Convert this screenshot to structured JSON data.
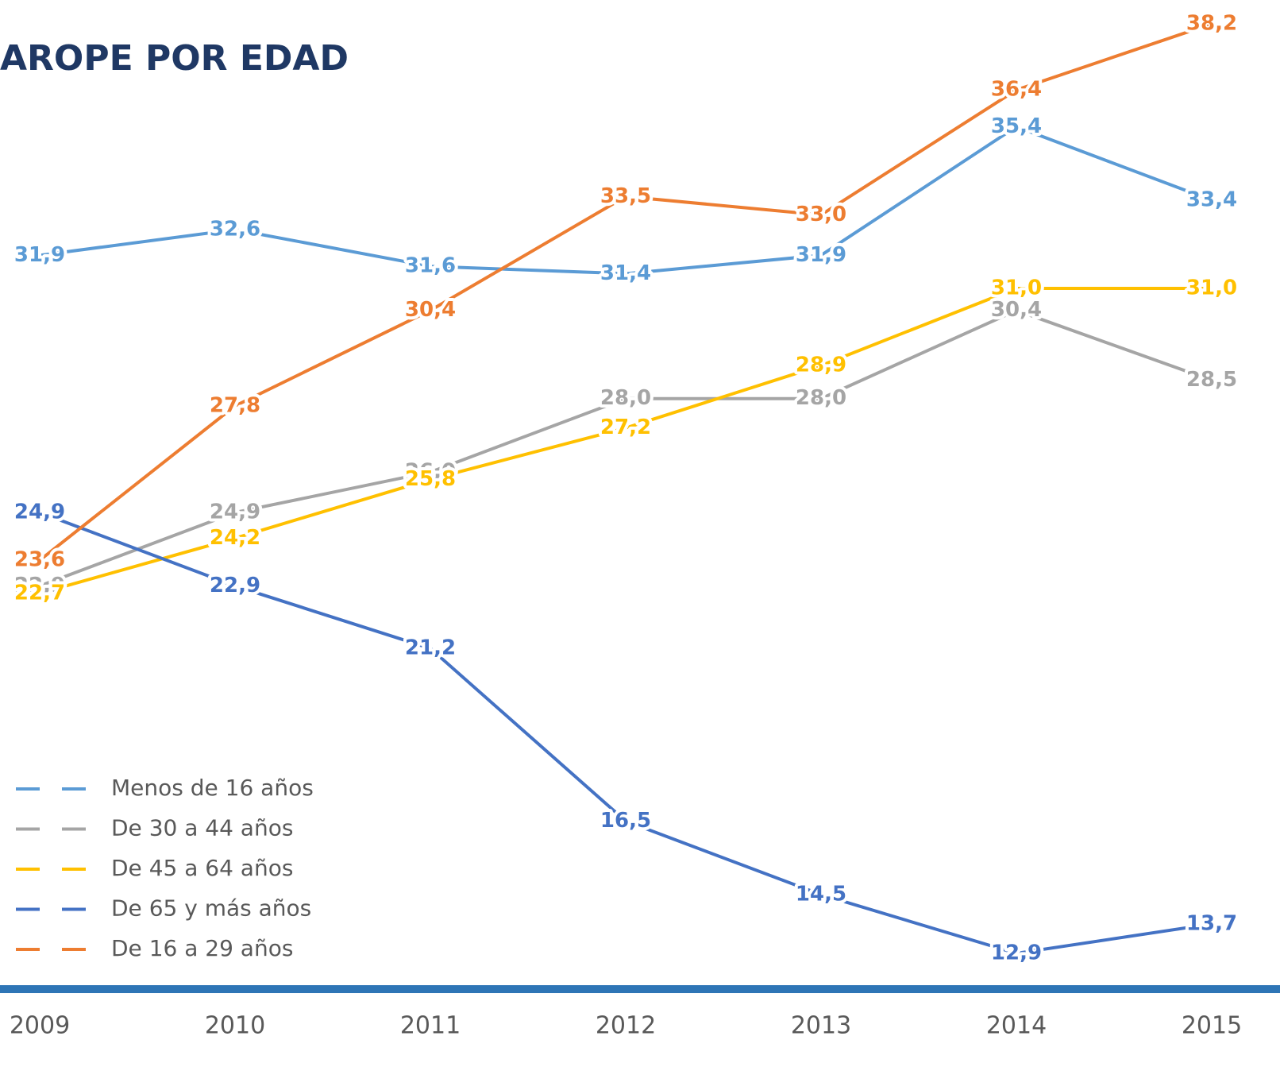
{
  "chart_data": {
    "type": "line",
    "title": "AROPE POR EDAD",
    "categories": [
      "2009",
      "2010",
      "2011",
      "2012",
      "2013",
      "2014",
      "2015"
    ],
    "series": [
      {
        "name": "Menos de 16 años",
        "color": "#5b9bd5",
        "values": [
          31.9,
          32.6,
          31.6,
          31.4,
          31.9,
          35.4,
          33.4
        ],
        "value_labels": [
          "31,9",
          "32,6",
          "31,6",
          "31,4",
          "31,9",
          "35,4",
          "33,4"
        ]
      },
      {
        "name": "De 30 a 44 años",
        "color": "#a5a5a5",
        "values": [
          22.9,
          24.9,
          26.0,
          28.0,
          28.0,
          30.4,
          28.5
        ],
        "value_labels": [
          "22,9",
          "24,9",
          "26,0",
          "28,0",
          "28,0",
          "30,4",
          "28,5"
        ]
      },
      {
        "name": "De 45 a 64 años",
        "color": "#ffc000",
        "values": [
          22.7,
          24.2,
          25.8,
          27.2,
          28.9,
          31.0,
          31.0
        ],
        "value_labels": [
          "22,7",
          "24,2",
          "25,8",
          "27,2",
          "28,9",
          "31,0",
          "31,0"
        ]
      },
      {
        "name": "De 65 y más años",
        "color": "#4472c4",
        "values": [
          24.9,
          22.9,
          21.2,
          16.5,
          14.5,
          12.9,
          13.7
        ],
        "value_labels": [
          "24,9",
          "22,9",
          "21,2",
          "16,5",
          "14,5",
          "12,9",
          "13,7"
        ]
      },
      {
        "name": "De 16 a 29 años",
        "color": "#ed7d31",
        "values": [
          23.6,
          27.8,
          30.4,
          33.5,
          33.0,
          36.4,
          38.2
        ],
        "value_labels": [
          "23,6",
          "27,8",
          "30,4",
          "33,5",
          "33,0",
          "36,4",
          "38,2"
        ]
      }
    ],
    "legend": "bottom-left"
  }
}
